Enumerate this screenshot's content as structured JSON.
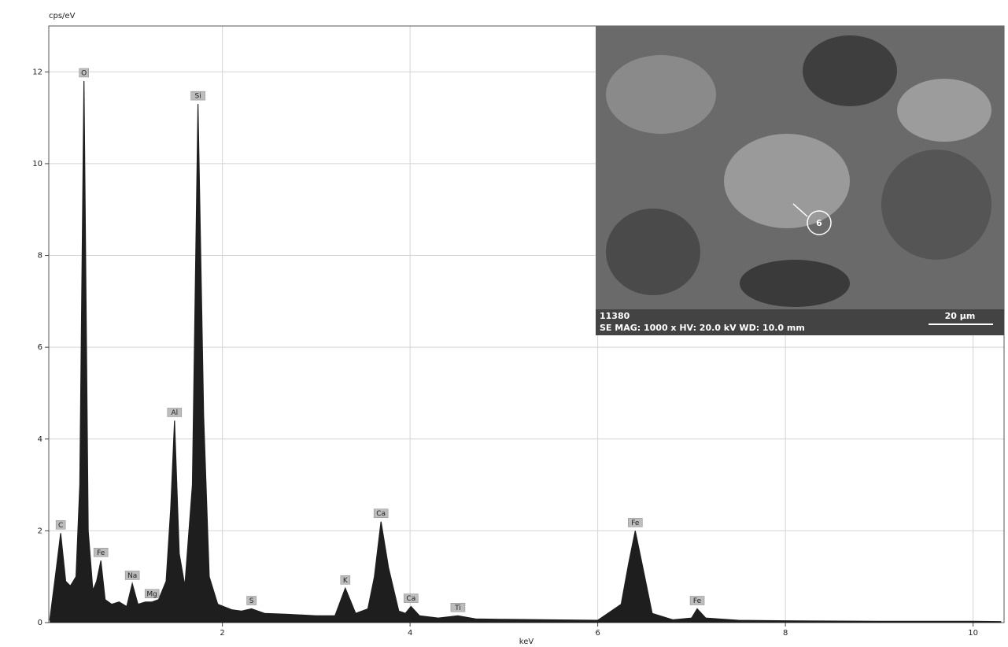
{
  "chart_data": {
    "type": "line",
    "y_label": "cps/eV",
    "x_label": "keV",
    "x": [
      0.16,
      0.22,
      0.277,
      0.33,
      0.38,
      0.44,
      0.48,
      0.525,
      0.57,
      0.62,
      0.66,
      0.705,
      0.75,
      0.82,
      0.9,
      0.98,
      1.04,
      1.1,
      1.18,
      1.25,
      1.32,
      1.4,
      1.45,
      1.49,
      1.54,
      1.6,
      1.68,
      1.74,
      1.8,
      1.86,
      1.95,
      2.1,
      2.2,
      2.31,
      2.45,
      2.7,
      3.0,
      3.2,
      3.31,
      3.42,
      3.55,
      3.62,
      3.69,
      3.77,
      3.88,
      3.95,
      4.01,
      4.1,
      4.3,
      4.51,
      4.7,
      5.0,
      5.5,
      6.0,
      6.25,
      6.33,
      6.4,
      6.48,
      6.58,
      6.8,
      7.0,
      7.06,
      7.15,
      7.5,
      8.0,
      9.0,
      10.0,
      10.3
    ],
    "series": [
      {
        "color": "#1e1e1e",
        "values": [
          0.05,
          1.0,
          1.95,
          0.9,
          0.8,
          1.0,
          3.0,
          11.8,
          2.0,
          0.7,
          0.9,
          1.35,
          0.5,
          0.4,
          0.45,
          0.35,
          0.85,
          0.4,
          0.45,
          0.45,
          0.5,
          0.9,
          2.5,
          4.4,
          1.5,
          0.8,
          3.0,
          11.3,
          4.5,
          1.0,
          0.4,
          0.28,
          0.25,
          0.3,
          0.2,
          0.18,
          0.15,
          0.15,
          0.75,
          0.2,
          0.3,
          1.0,
          2.2,
          1.2,
          0.25,
          0.2,
          0.35,
          0.15,
          0.1,
          0.15,
          0.08,
          0.07,
          0.06,
          0.05,
          0.4,
          1.3,
          2.0,
          1.2,
          0.2,
          0.06,
          0.1,
          0.3,
          0.1,
          0.05,
          0.04,
          0.03,
          0.03,
          0.02
        ]
      }
    ],
    "annotations": [
      {
        "text": "C",
        "x": 0.277,
        "y": 1.95
      },
      {
        "text": "O",
        "x": 0.525,
        "y": 11.8
      },
      {
        "text": "Fe",
        "x": 0.705,
        "y": 1.35
      },
      {
        "text": "Na",
        "x": 1.04,
        "y": 0.85
      },
      {
        "text": "Mg",
        "x": 1.25,
        "y": 0.45
      },
      {
        "text": "Al",
        "x": 1.49,
        "y": 4.4
      },
      {
        "text": "Si",
        "x": 1.74,
        "y": 11.3
      },
      {
        "text": "S",
        "x": 2.31,
        "y": 0.3
      },
      {
        "text": "K",
        "x": 3.31,
        "y": 0.75
      },
      {
        "text": "Ca",
        "x": 3.69,
        "y": 2.2
      },
      {
        "text": "Ca",
        "x": 4.01,
        "y": 0.35
      },
      {
        "text": "Ti",
        "x": 4.51,
        "y": 0.15
      },
      {
        "text": "Fe",
        "x": 6.4,
        "y": 2.0
      },
      {
        "text": "Fe",
        "x": 7.06,
        "y": 0.3
      }
    ],
    "xlim": [
      0.15,
      10.33
    ],
    "ylim": [
      0,
      13
    ],
    "xticks": [
      2,
      4,
      6,
      8,
      10
    ],
    "yticks": [
      0,
      2,
      4,
      6,
      8,
      10,
      12
    ],
    "grid": true,
    "inset": {
      "id": "11380",
      "info": "SE  MAG: 1000 x  HV: 20.0 kV  WD: 10.0 mm",
      "scale": "20 µm",
      "marker": "6"
    }
  }
}
